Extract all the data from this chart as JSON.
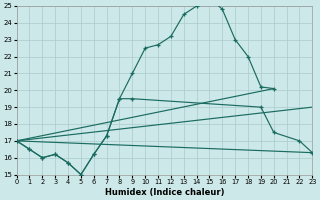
{
  "xlabel": "Humidex (Indice chaleur)",
  "background_color": "#cce8e8",
  "grid_color": "#aacccc",
  "line_color": "#1a6b60",
  "xlim": [
    0,
    23
  ],
  "ylim": [
    15,
    25
  ],
  "xticks": [
    0,
    1,
    2,
    3,
    4,
    5,
    6,
    7,
    8,
    9,
    10,
    11,
    12,
    13,
    14,
    15,
    16,
    17,
    18,
    19,
    20,
    21,
    22,
    23
  ],
  "yticks": [
    15,
    16,
    17,
    18,
    19,
    20,
    21,
    22,
    23,
    24,
    25
  ],
  "curve1_x": [
    0,
    1,
    2,
    3,
    4,
    5,
    6,
    7,
    8,
    9,
    10,
    11,
    12,
    13,
    14,
    15,
    16,
    17,
    18,
    19,
    20
  ],
  "curve1_y": [
    17.0,
    16.5,
    16.0,
    16.2,
    15.7,
    15.0,
    16.2,
    17.3,
    19.5,
    21.0,
    22.5,
    22.7,
    23.2,
    24.5,
    25.0,
    25.5,
    24.8,
    23.0,
    22.0,
    20.2,
    20.1
  ],
  "curve2_x": [
    0,
    1,
    2,
    3,
    4,
    5,
    6,
    7,
    8,
    9,
    19,
    20,
    22,
    23
  ],
  "curve2_y": [
    17.0,
    16.5,
    16.0,
    16.2,
    15.7,
    15.0,
    16.2,
    17.3,
    19.5,
    19.5,
    19.0,
    17.5,
    17.0,
    16.3
  ],
  "line1_x": [
    0,
    23
  ],
  "line1_y": [
    17.0,
    16.3
  ],
  "line2_x": [
    0,
    20
  ],
  "line2_y": [
    17.0,
    20.1
  ],
  "line3_x": [
    0,
    23
  ],
  "line3_y": [
    17.0,
    19.0
  ]
}
